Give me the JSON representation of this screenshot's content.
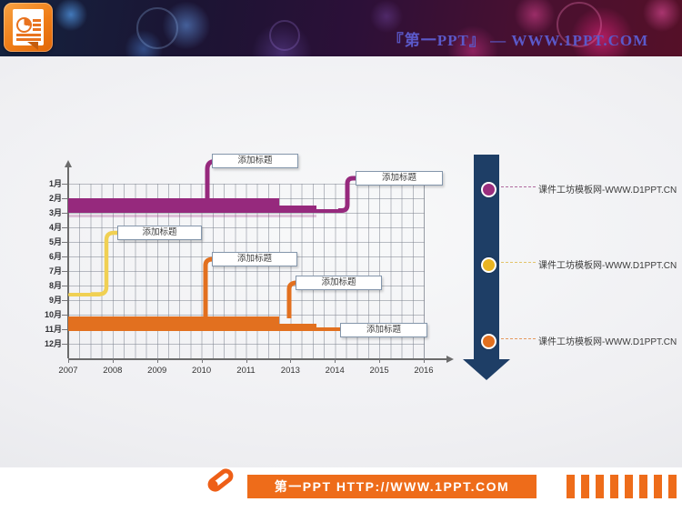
{
  "header": {
    "title": "『第一PPT』 — WWW.1PPT.COM",
    "title_color": "#5b59c9",
    "logo_icon": "powerpoint-document-icon"
  },
  "chart_data": {
    "type": "gantt-timeline",
    "title": "",
    "x_ticks": [
      "2007",
      "2008",
      "2009",
      "2010",
      "2011",
      "2013",
      "2014",
      "2015",
      "2016"
    ],
    "y_ticks": [
      "1月",
      "2月",
      "3月",
      "4月",
      "5月",
      "6月",
      "7月",
      "8月",
      "9月",
      "10月",
      "11月",
      "12月"
    ],
    "grid": true,
    "legend": "none",
    "series": [
      {
        "name": "purple",
        "color": "#96297d",
        "month_band": "2月-3月",
        "segments": [
          {
            "range": "2007 → ~2011.7",
            "weight": "thick"
          },
          {
            "range": "~2011.7 → ~2013.5",
            "weight": "medium"
          },
          {
            "range": "~2013.5 → ~2014",
            "weight": "thin"
          }
        ]
      },
      {
        "name": "yellow",
        "color": "#f0d053",
        "month_band": "8月-9月",
        "segments": [
          {
            "range": "2007 → ~2008",
            "weight": "thin"
          }
        ]
      },
      {
        "name": "orange",
        "color": "#e2701f",
        "month_band": "10月-11月",
        "segments": [
          {
            "range": "2007 → ~2011.7",
            "weight": "thick"
          },
          {
            "range": "~2011.7 → ~2013.5",
            "weight": "medium"
          },
          {
            "range": "~2013.5 → ~2014",
            "weight": "thin"
          }
        ]
      }
    ],
    "callouts": [
      {
        "label": "添加标题",
        "series": "purple",
        "anchor_year": "2010"
      },
      {
        "label": "添加标题",
        "series": "purple",
        "anchor_year": "2014"
      },
      {
        "label": "添加标题",
        "series": "yellow",
        "anchor_year": "2008"
      },
      {
        "label": "添加标题",
        "series": "orange",
        "anchor_year": "2010"
      },
      {
        "label": "添加标题",
        "series": "orange",
        "anchor_year": "2013"
      },
      {
        "label": "添加标题",
        "series": "orange",
        "anchor_year": "2014"
      }
    ]
  },
  "timeline_arrow": {
    "color": "#1e3e66",
    "direction": "down",
    "items": [
      {
        "dot_color": "#9a2e7e",
        "line_color": "#b06a9e",
        "label": "课件工坊模板网-WWW.D1PPT.CN"
      },
      {
        "dot_color": "#e9b422",
        "line_color": "#e3c46a",
        "label": "课件工坊模板网-WWW.D1PPT.CN"
      },
      {
        "dot_color": "#e2701f",
        "line_color": "#e59a5d",
        "label": "课件工坊模板网-WWW.D1PPT.CN"
      }
    ]
  },
  "footer": {
    "brand_text": "第一PPT HTTP://WWW.1PPT.COM",
    "bar_color": "#ee6c1a",
    "stripe_count": 9,
    "logo_icon": "pen-capsule-icon"
  }
}
